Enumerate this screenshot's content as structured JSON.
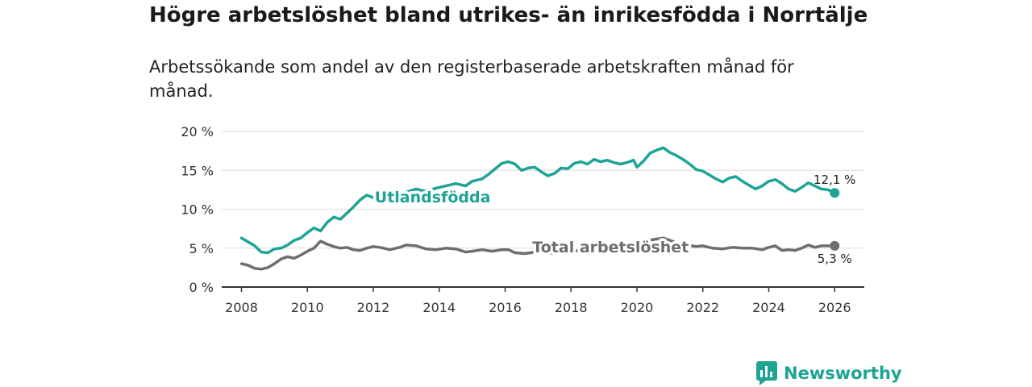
{
  "header": {
    "title": "Högre arbetslöshet bland utrikes- än inrikesfödda i Norrtälje",
    "subtitle": "Arbetssökande som andel av den registerbaserade arbetskraften månad för månad."
  },
  "brand": {
    "name": "Newsworthy",
    "color": "#1ea495"
  },
  "chart_data": {
    "type": "line",
    "title": "Högre arbetslöshet bland utrikes- än inrikesfödda i Norrtälje",
    "subtitle": "Arbetssökande som andel av den registerbaserade arbetskraften månad för månad.",
    "xlim": [
      2007.4,
      2026.9
    ],
    "ylim": [
      0,
      20
    ],
    "x_ticks": [
      2008,
      2010,
      2012,
      2014,
      2016,
      2018,
      2020,
      2022,
      2024,
      2026
    ],
    "x_tick_labels": [
      "2008",
      "2010",
      "2012",
      "2014",
      "2016",
      "2018",
      "2020",
      "2022",
      "2024",
      "2026"
    ],
    "y_ticks": [
      0,
      5,
      10,
      15,
      20
    ],
    "y_tick_labels": [
      "0 %",
      "5 %",
      "10 %",
      "15 %",
      "20 %"
    ],
    "grid": true,
    "series": [
      {
        "name": "Utlandsfödda",
        "color": "#1ea495",
        "end_label": "12,1 %",
        "points": [
          [
            2008.0,
            6.3
          ],
          [
            2008.2,
            5.8
          ],
          [
            2008.4,
            5.3
          ],
          [
            2008.6,
            4.5
          ],
          [
            2008.8,
            4.4
          ],
          [
            2009.0,
            4.9
          ],
          [
            2009.2,
            5.0
          ],
          [
            2009.4,
            5.4
          ],
          [
            2009.6,
            6.0
          ],
          [
            2009.8,
            6.3
          ],
          [
            2010.0,
            7.0
          ],
          [
            2010.2,
            7.6
          ],
          [
            2010.4,
            7.2
          ],
          [
            2010.6,
            8.3
          ],
          [
            2010.8,
            9.0
          ],
          [
            2011.0,
            8.7
          ],
          [
            2011.2,
            9.5
          ],
          [
            2011.4,
            10.3
          ],
          [
            2011.6,
            11.2
          ],
          [
            2011.8,
            11.8
          ],
          [
            2012.0,
            11.5
          ],
          [
            2012.2,
            11.0
          ],
          [
            2012.5,
            11.6
          ],
          [
            2012.8,
            12.0
          ],
          [
            2013.0,
            12.2
          ],
          [
            2013.3,
            12.6
          ],
          [
            2013.6,
            12.3
          ],
          [
            2013.9,
            12.7
          ],
          [
            2014.2,
            13.0
          ],
          [
            2014.5,
            13.3
          ],
          [
            2014.8,
            13.0
          ],
          [
            2015.0,
            13.6
          ],
          [
            2015.3,
            13.9
          ],
          [
            2015.5,
            14.5
          ],
          [
            2015.7,
            15.2
          ],
          [
            2015.9,
            15.9
          ],
          [
            2016.1,
            16.1
          ],
          [
            2016.3,
            15.8
          ],
          [
            2016.5,
            15.0
          ],
          [
            2016.7,
            15.3
          ],
          [
            2016.9,
            15.4
          ],
          [
            2017.1,
            14.8
          ],
          [
            2017.3,
            14.3
          ],
          [
            2017.5,
            14.6
          ],
          [
            2017.7,
            15.3
          ],
          [
            2017.9,
            15.2
          ],
          [
            2018.1,
            15.9
          ],
          [
            2018.3,
            16.1
          ],
          [
            2018.5,
            15.8
          ],
          [
            2018.7,
            16.4
          ],
          [
            2018.9,
            16.1
          ],
          [
            2019.1,
            16.3
          ],
          [
            2019.3,
            16.0
          ],
          [
            2019.5,
            15.8
          ],
          [
            2019.7,
            16.0
          ],
          [
            2019.9,
            16.3
          ],
          [
            2020.0,
            15.4
          ],
          [
            2020.2,
            16.2
          ],
          [
            2020.4,
            17.2
          ],
          [
            2020.6,
            17.6
          ],
          [
            2020.8,
            17.9
          ],
          [
            2021.0,
            17.3
          ],
          [
            2021.2,
            16.9
          ],
          [
            2021.4,
            16.4
          ],
          [
            2021.6,
            15.8
          ],
          [
            2021.8,
            15.1
          ],
          [
            2022.0,
            14.9
          ],
          [
            2022.2,
            14.4
          ],
          [
            2022.4,
            13.9
          ],
          [
            2022.6,
            13.5
          ],
          [
            2022.8,
            14.0
          ],
          [
            2023.0,
            14.2
          ],
          [
            2023.2,
            13.6
          ],
          [
            2023.4,
            13.1
          ],
          [
            2023.6,
            12.6
          ],
          [
            2023.8,
            13.0
          ],
          [
            2024.0,
            13.6
          ],
          [
            2024.2,
            13.8
          ],
          [
            2024.4,
            13.3
          ],
          [
            2024.6,
            12.6
          ],
          [
            2024.8,
            12.3
          ],
          [
            2025.0,
            12.8
          ],
          [
            2025.2,
            13.4
          ],
          [
            2025.4,
            13.0
          ],
          [
            2025.6,
            12.6
          ],
          [
            2025.8,
            12.5
          ],
          [
            2026.0,
            12.1
          ]
        ]
      },
      {
        "name": "Total arbetslöshet",
        "color": "#6e6e72",
        "end_label": "5,3 %",
        "points": [
          [
            2008.0,
            3.0
          ],
          [
            2008.2,
            2.8
          ],
          [
            2008.4,
            2.4
          ],
          [
            2008.6,
            2.3
          ],
          [
            2008.8,
            2.5
          ],
          [
            2009.0,
            3.0
          ],
          [
            2009.2,
            3.6
          ],
          [
            2009.4,
            3.9
          ],
          [
            2009.6,
            3.7
          ],
          [
            2009.8,
            4.1
          ],
          [
            2010.0,
            4.6
          ],
          [
            2010.2,
            5.0
          ],
          [
            2010.4,
            5.9
          ],
          [
            2010.6,
            5.5
          ],
          [
            2010.8,
            5.2
          ],
          [
            2011.0,
            5.0
          ],
          [
            2011.2,
            5.1
          ],
          [
            2011.4,
            4.8
          ],
          [
            2011.6,
            4.7
          ],
          [
            2011.8,
            5.0
          ],
          [
            2012.0,
            5.2
          ],
          [
            2012.2,
            5.1
          ],
          [
            2012.5,
            4.8
          ],
          [
            2012.8,
            5.1
          ],
          [
            2013.0,
            5.4
          ],
          [
            2013.3,
            5.3
          ],
          [
            2013.6,
            4.9
          ],
          [
            2013.9,
            4.8
          ],
          [
            2014.2,
            5.0
          ],
          [
            2014.5,
            4.9
          ],
          [
            2014.8,
            4.5
          ],
          [
            2015.0,
            4.6
          ],
          [
            2015.3,
            4.8
          ],
          [
            2015.6,
            4.6
          ],
          [
            2015.9,
            4.8
          ],
          [
            2016.1,
            4.8
          ],
          [
            2016.3,
            4.4
          ],
          [
            2016.6,
            4.3
          ],
          [
            2016.9,
            4.5
          ],
          [
            2017.2,
            4.5
          ],
          [
            2017.5,
            4.3
          ],
          [
            2017.8,
            4.4
          ],
          [
            2018.1,
            4.6
          ],
          [
            2018.4,
            4.8
          ],
          [
            2018.7,
            5.0
          ],
          [
            2019.0,
            5.3
          ],
          [
            2019.3,
            5.2
          ],
          [
            2019.6,
            5.4
          ],
          [
            2019.9,
            5.3
          ],
          [
            2020.2,
            5.8
          ],
          [
            2020.5,
            6.1
          ],
          [
            2020.8,
            6.3
          ],
          [
            2021.0,
            6.0
          ],
          [
            2021.2,
            5.7
          ],
          [
            2021.5,
            5.4
          ],
          [
            2021.8,
            5.2
          ],
          [
            2022.0,
            5.3
          ],
          [
            2022.3,
            5.0
          ],
          [
            2022.6,
            4.9
          ],
          [
            2022.9,
            5.1
          ],
          [
            2023.2,
            5.0
          ],
          [
            2023.5,
            5.0
          ],
          [
            2023.8,
            4.8
          ],
          [
            2024.0,
            5.1
          ],
          [
            2024.2,
            5.3
          ],
          [
            2024.4,
            4.7
          ],
          [
            2024.6,
            4.8
          ],
          [
            2024.8,
            4.7
          ],
          [
            2025.0,
            5.0
          ],
          [
            2025.2,
            5.4
          ],
          [
            2025.4,
            5.1
          ],
          [
            2025.6,
            5.3
          ],
          [
            2025.8,
            5.3
          ],
          [
            2026.0,
            5.3
          ]
        ]
      }
    ],
    "annotations": [
      {
        "series": "Utlandsfödda",
        "text": "Utlandsfödda",
        "x": 2013.8,
        "y": 11.6
      },
      {
        "series": "Total arbetslöshet",
        "text": "Total arbetslöshet",
        "x": 2019.2,
        "y": 5.2
      }
    ]
  }
}
